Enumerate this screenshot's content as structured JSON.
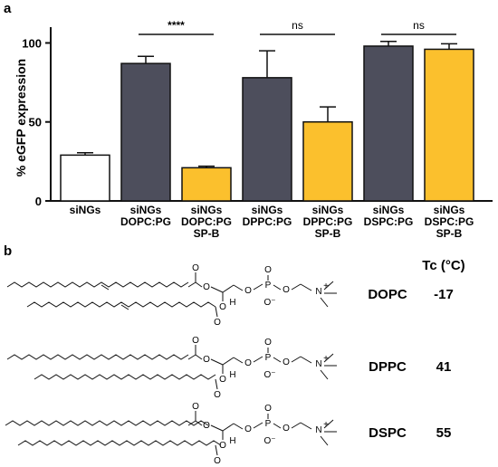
{
  "panels": {
    "a": "a",
    "b": "b"
  },
  "chart_data": {
    "type": "bar",
    "title": "",
    "ylabel": "% eGFP expression",
    "xlabel": "",
    "ylim": [
      0,
      110
    ],
    "yticks": [
      0,
      50,
      100
    ],
    "grid": false,
    "categories": [
      [
        "siNGs"
      ],
      [
        "siNGs",
        "DOPC:PG"
      ],
      [
        "siNGs",
        "DOPC:PG",
        "SP-B"
      ],
      [
        "siNGs",
        "DPPC:PG"
      ],
      [
        "siNGs",
        "DPPC:PG",
        "SP-B"
      ],
      [
        "siNGs",
        "DSPC:PG"
      ],
      [
        "siNGs",
        "DSPC:PG",
        "SP-B"
      ]
    ],
    "values": [
      29,
      87,
      21,
      78,
      50,
      98,
      96
    ],
    "errors": [
      1.5,
      4.5,
      1,
      17,
      9.5,
      3,
      3.5
    ],
    "colors": [
      "#ffffff",
      "#4d4e5c",
      "#fbc02d",
      "#4d4e5c",
      "#fbc02d",
      "#4d4e5c",
      "#fbc02d"
    ],
    "significance": [
      {
        "from": 1,
        "to": 2,
        "label": "****"
      },
      {
        "from": 3,
        "to": 4,
        "label": "ns"
      },
      {
        "from": 5,
        "to": 6,
        "label": "ns"
      }
    ]
  },
  "structures": {
    "tc_header": "Tc (°C)",
    "lipids": [
      {
        "name": "DOPC",
        "tc": "-17"
      },
      {
        "name": "DPPC",
        "tc": "41"
      },
      {
        "name": "DSPC",
        "tc": "55"
      }
    ],
    "atoms": {
      "O": "O",
      "P": "P",
      "N": "N",
      "H": "H",
      "Ominus": "O⁻",
      "plus": "+"
    }
  }
}
